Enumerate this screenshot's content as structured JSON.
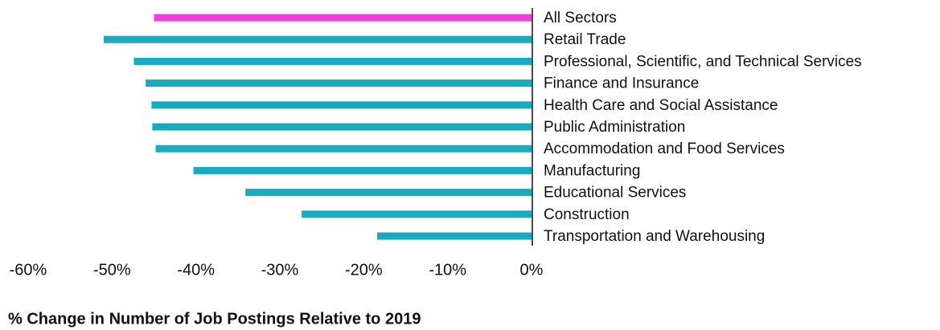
{
  "chart_data": {
    "type": "barh",
    "xlabel": "% Change in Number of Job Postings Relative to 2019",
    "categories": [
      "All Sectors",
      "Retail Trade",
      "Professional, Scientific, and Technical Services",
      "Finance and Insurance",
      "Health Care and Social Assistance",
      "Public Administration",
      "Accommodation and Food Services",
      "Manufacturing",
      "Educational Services",
      "Construction",
      "Transportation and Warehousing"
    ],
    "values": [
      -45,
      -51,
      -47.4,
      -46,
      -45.3,
      -45.2,
      -44.8,
      -40.3,
      -34.1,
      -27.4,
      -18.4
    ],
    "colors": [
      "#ee3fdd",
      "#18abbd",
      "#18abbd",
      "#18abbd",
      "#18abbd",
      "#18abbd",
      "#18abbd",
      "#18abbd",
      "#18abbd",
      "#18abbd",
      "#18abbd"
    ],
    "xlim": [
      -60,
      0
    ],
    "xticks": [
      {
        "value": -60,
        "label": "-60%"
      },
      {
        "value": -50,
        "label": "-50%"
      },
      {
        "value": -40,
        "label": "-40%"
      },
      {
        "value": -30,
        "label": "-30%"
      },
      {
        "value": -20,
        "label": "-20%"
      },
      {
        "value": -10,
        "label": "-10%"
      },
      {
        "value": 0,
        "label": "0%"
      }
    ]
  }
}
